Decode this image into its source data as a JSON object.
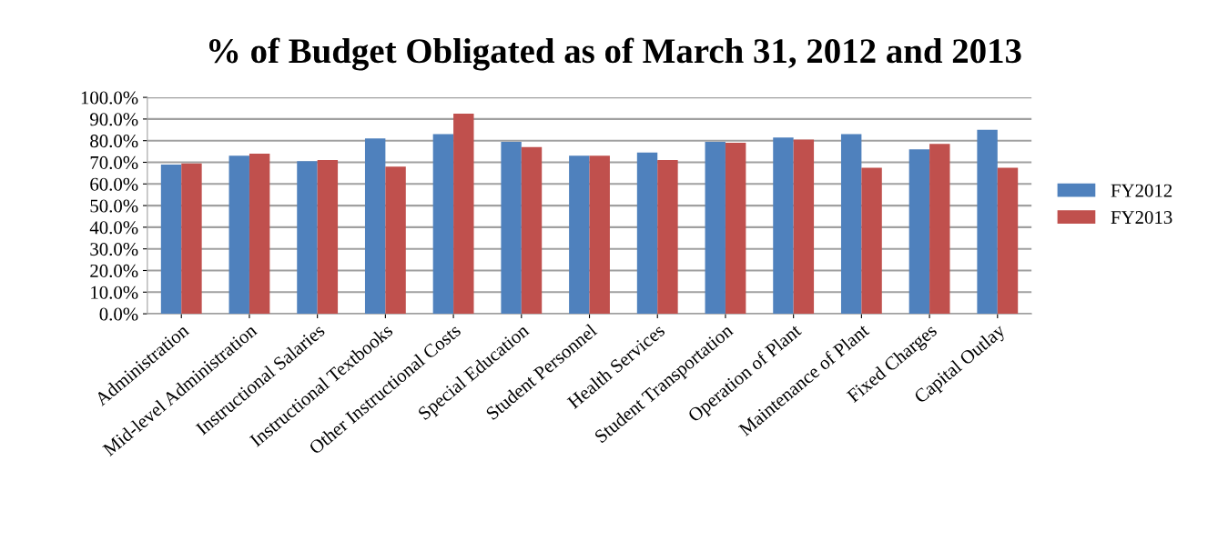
{
  "chart_data": {
    "type": "bar",
    "title": "% of Budget Obligated as of March 31, 2012 and 2013",
    "categories": [
      "Administration",
      "Mid-level Administration",
      "Instructional Salaries",
      "Instructional Textbooks",
      "Other Instructional Costs",
      "Special Education",
      "Student Personnel",
      "Health Services",
      "Student Transportation",
      "Operation of Plant",
      "Maintenance of Plant",
      "Fixed Charges",
      "Capital Outlay"
    ],
    "series": [
      {
        "name": "FY2012",
        "color": "#4f81bd",
        "values": [
          69,
          73,
          70.5,
          81,
          83,
          79.5,
          73,
          74.5,
          79.5,
          81.5,
          83,
          76,
          85
        ]
      },
      {
        "name": "FY2013",
        "color": "#c0504d",
        "values": [
          69.5,
          74,
          71,
          68,
          92.5,
          77,
          73,
          71,
          79,
          80.5,
          67.5,
          78.5,
          67.5
        ]
      }
    ],
    "ylim": [
      0,
      100
    ],
    "yticks": [
      {
        "value": 0,
        "label": "0.0%"
      },
      {
        "value": 10,
        "label": "10.0%"
      },
      {
        "value": 20,
        "label": "20.0%"
      },
      {
        "value": 30,
        "label": "30.0%"
      },
      {
        "value": 40,
        "label": "40.0%"
      },
      {
        "value": 50,
        "label": "50.0%"
      },
      {
        "value": 60,
        "label": "60.0%"
      },
      {
        "value": 70,
        "label": "70.0%"
      },
      {
        "value": 80,
        "label": "80.0%"
      },
      {
        "value": 90,
        "label": "90.0%"
      },
      {
        "value": 100,
        "label": "100.0%"
      }
    ],
    "grid": "y",
    "legend": "right"
  }
}
